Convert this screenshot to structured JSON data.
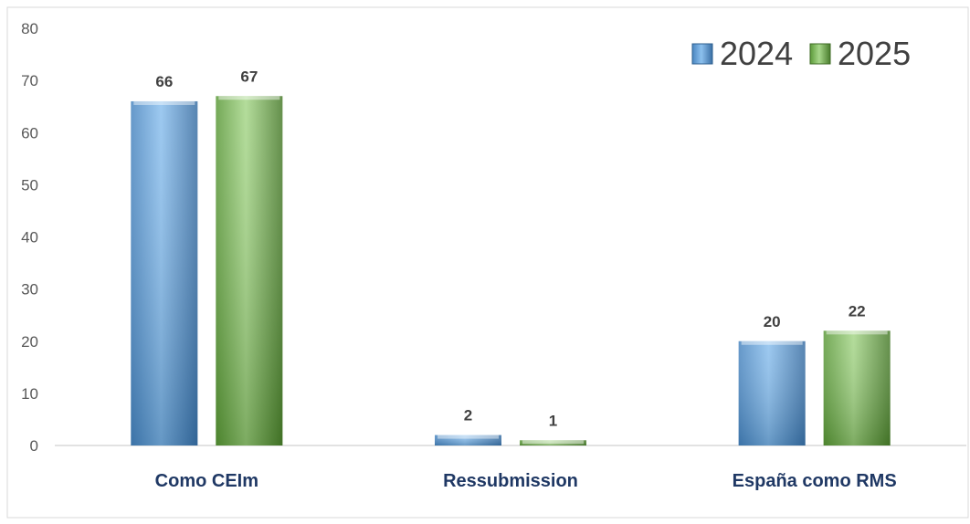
{
  "chart_data": {
    "type": "bar",
    "categories": [
      "Como CEIm",
      "Ressubmission",
      "España como RMS"
    ],
    "series": [
      {
        "name": "2024",
        "values": [
          66,
          2,
          20
        ],
        "color": "#5b9bd5"
      },
      {
        "name": "2025",
        "values": [
          67,
          1,
          22
        ],
        "color": "#70ad47"
      }
    ],
    "ylim": [
      0,
      80
    ],
    "yticks": [
      "0",
      "10",
      "20",
      "30",
      "40",
      "50",
      "60",
      "70",
      "80"
    ],
    "data_labels": [
      [
        "66",
        "2",
        "20"
      ],
      [
        "67",
        "1",
        "22"
      ]
    ],
    "legend": {
      "position": "top-right",
      "entries": [
        "2024",
        "2025"
      ]
    },
    "grid": false,
    "title": "",
    "xlabel": "",
    "ylabel": ""
  }
}
